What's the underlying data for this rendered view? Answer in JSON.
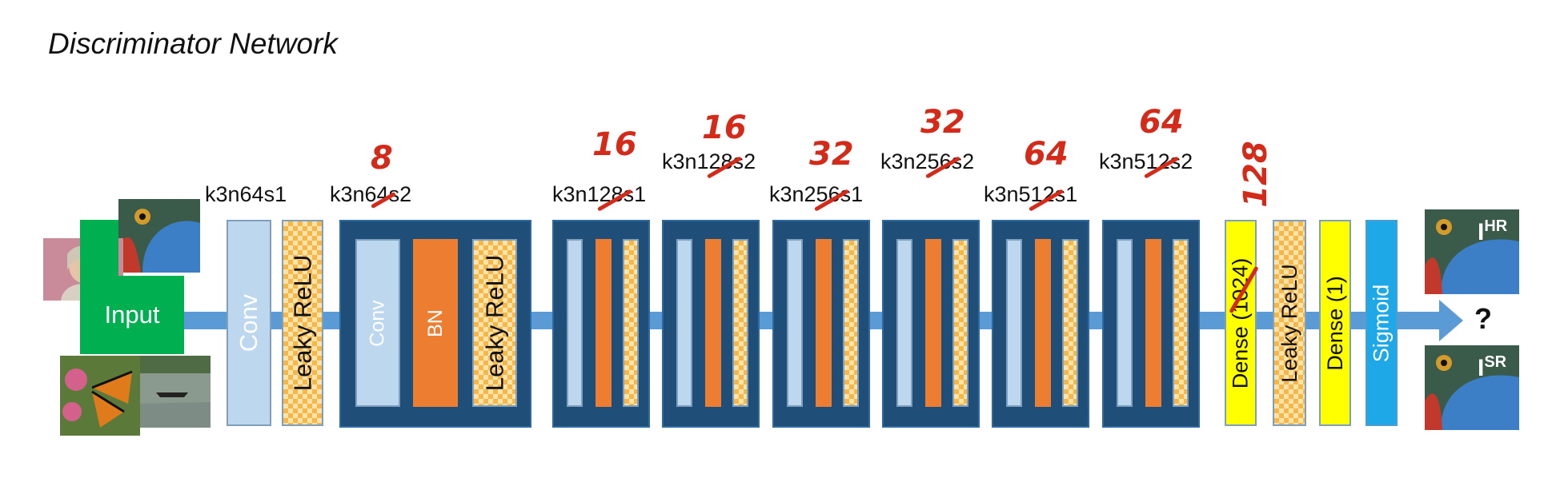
{
  "title": "Discriminator Network",
  "input_label": "Input",
  "question": "?",
  "first_conv": {
    "spec": "k3n64s1",
    "conv_label": "Conv",
    "act_label": "Leaky ReLU"
  },
  "block1": {
    "spec": "k3n64s2",
    "conv_label": "Conv",
    "bn_label": "BN",
    "act_label": "Leaky ReLU",
    "correction": "8"
  },
  "blocks": [
    {
      "spec": "k3n128s1",
      "correction": "16"
    },
    {
      "spec": "k3n128s2",
      "correction": "16"
    },
    {
      "spec": "k3n256s1",
      "correction": "32"
    },
    {
      "spec": "k3n256s2",
      "correction": "32"
    },
    {
      "spec": "k3n512s1",
      "correction": "64"
    },
    {
      "spec": "k3n512s2",
      "correction": "64"
    }
  ],
  "head": {
    "dense1": "Dense (1024)",
    "dense1_correction": "128",
    "act": "Leaky ReLU",
    "dense2": "Dense (1)",
    "sigmoid": "Sigmoid"
  },
  "outputs": {
    "hr": "I",
    "hr_sup": "HR",
    "sr": "I",
    "sr_sup": "SR"
  },
  "colors": {
    "conv": "#bdd7ee",
    "bn": "#ed7d31",
    "block": "#1f4e79",
    "dense": "#ffff00",
    "sigmoid": "#1fa8e8",
    "input": "#00b050",
    "annotation": "#d32a1a"
  }
}
